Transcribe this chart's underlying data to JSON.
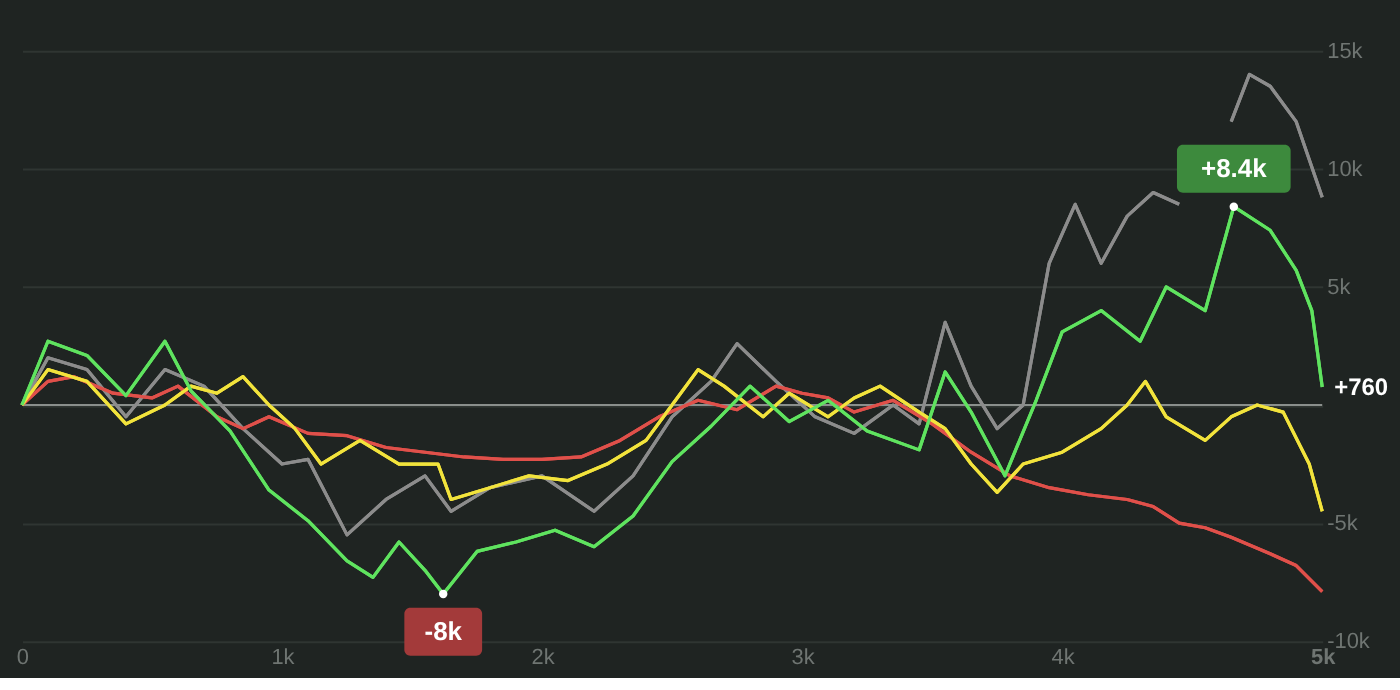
{
  "chart_data": {
    "type": "line",
    "xlim": [
      0,
      5000
    ],
    "xticks": [
      {
        "value": 0,
        "label": "0"
      },
      {
        "value": 1000,
        "label": "1k"
      },
      {
        "value": 2000,
        "label": "2k"
      },
      {
        "value": 3000,
        "label": "3k"
      },
      {
        "value": 4000,
        "label": "4k"
      },
      {
        "value": 5000,
        "label": "5k"
      }
    ],
    "ylim": [
      -10000,
      15000
    ],
    "yticks": [
      {
        "value": -10000,
        "label": "-10k"
      },
      {
        "value": -5000,
        "label": "-5k"
      },
      {
        "value": 0,
        "label": null
      },
      {
        "value": 5000,
        "label": "5k"
      },
      {
        "value": 10000,
        "label": "10k"
      },
      {
        "value": 15000,
        "label": "15k"
      }
    ],
    "grid": "y",
    "legend": false,
    "marker": "none",
    "line_style": "solid",
    "ref_lines": [
      {
        "axis": "y",
        "value": 0,
        "label": null,
        "color": "#8a8f8c"
      }
    ],
    "series": [
      {
        "color": "#8c8c8c",
        "x": [
          0,
          100,
          250,
          400,
          550,
          700,
          850,
          1000,
          1100,
          1250,
          1400,
          1550,
          1650,
          1800,
          2000,
          2200,
          2350,
          2500,
          2650,
          2750,
          2900,
          3050,
          3200,
          3350,
          3450,
          3550,
          3650,
          3750,
          3850,
          3950,
          4050,
          4150,
          4250,
          4350,
          4450,
          4550,
          4650,
          4720,
          4800,
          4900,
          5000
        ],
        "values": [
          0,
          2000,
          1500,
          -500,
          1500,
          800,
          -1000,
          -2500,
          -2300,
          -5500,
          -4000,
          -3000,
          -4500,
          -3500,
          -3000,
          -4500,
          -3000,
          -500,
          1000,
          2600,
          1000,
          -500,
          -1200,
          0,
          -800,
          3500,
          800,
          -1000,
          0,
          6000,
          8500,
          6000,
          8000,
          9000,
          8500,
          null,
          12000,
          14000,
          13500,
          12000,
          8800
        ]
      },
      {
        "color": "#e0504a",
        "x": [
          0,
          100,
          200,
          350,
          500,
          600,
          750,
          850,
          950,
          1100,
          1250,
          1400,
          1550,
          1700,
          1850,
          2000,
          2150,
          2300,
          2450,
          2600,
          2750,
          2900,
          3000,
          3100,
          3200,
          3350,
          3500,
          3650,
          3800,
          3950,
          4100,
          4250,
          4350,
          4450,
          4550,
          4650,
          4800,
          4900,
          5000
        ],
        "values": [
          0,
          1000,
          1200,
          500,
          300,
          800,
          -500,
          -1000,
          -500,
          -1200,
          -1300,
          -1800,
          -2000,
          -2200,
          -2300,
          -2300,
          -2200,
          -1500,
          -500,
          200,
          -200,
          800,
          500,
          300,
          -300,
          200,
          -800,
          -2000,
          -3000,
          -3500,
          -3800,
          -4000,
          -4300,
          -5000,
          -5200,
          -5600,
          -6300,
          -6800,
          -7900
        ]
      },
      {
        "color": "#f2e33c",
        "x": [
          0,
          100,
          250,
          400,
          550,
          650,
          750,
          850,
          950,
          1050,
          1150,
          1300,
          1450,
          1600,
          1650,
          1800,
          1950,
          2100,
          2250,
          2400,
          2500,
          2600,
          2700,
          2850,
          2950,
          3100,
          3200,
          3300,
          3450,
          3550,
          3650,
          3750,
          3850,
          4000,
          4150,
          4250,
          4320,
          4400,
          4550,
          4650,
          4750,
          4850,
          4950,
          5000
        ],
        "values": [
          0,
          1500,
          1000,
          -800,
          0,
          800,
          500,
          1200,
          0,
          -1000,
          -2500,
          -1500,
          -2500,
          -2500,
          -4000,
          -3500,
          -3000,
          -3200,
          -2500,
          -1500,
          0,
          1500,
          800,
          -500,
          500,
          -500,
          300,
          800,
          -300,
          -1000,
          -2500,
          -3700,
          -2500,
          -2000,
          -1000,
          0,
          1000,
          -500,
          -1500,
          -500,
          0,
          -300,
          -2500,
          -4500
        ]
      },
      {
        "color": "#5fe35f",
        "x": [
          0,
          100,
          250,
          400,
          550,
          650,
          800,
          950,
          1100,
          1250,
          1350,
          1450,
          1550,
          1620,
          1750,
          1900,
          2050,
          2200,
          2350,
          2500,
          2650,
          2800,
          2950,
          3100,
          3250,
          3450,
          3550,
          3650,
          3780,
          3900,
          4000,
          4150,
          4300,
          4400,
          4550,
          4660,
          4800,
          4900,
          4960,
          5000
        ],
        "values": [
          0,
          2700,
          2100,
          400,
          2700,
          600,
          -1100,
          -3600,
          -4900,
          -6600,
          -7300,
          -5800,
          -7000,
          -8000,
          -6200,
          -5800,
          -5300,
          -6000,
          -4700,
          -2400,
          -900,
          800,
          -700,
          200,
          -1100,
          -1900,
          1400,
          -300,
          -3000,
          200,
          3100,
          4000,
          2700,
          5000,
          4000,
          8400,
          7400,
          5700,
          4000,
          760
        ]
      }
    ],
    "annotations": [
      {
        "text": "-8k",
        "x": 1620,
        "y": -8000
      },
      {
        "text": "+8.4k",
        "x": 4660,
        "y": 8400
      },
      {
        "text": "+760",
        "x": 5000,
        "y": 760
      }
    ]
  }
}
